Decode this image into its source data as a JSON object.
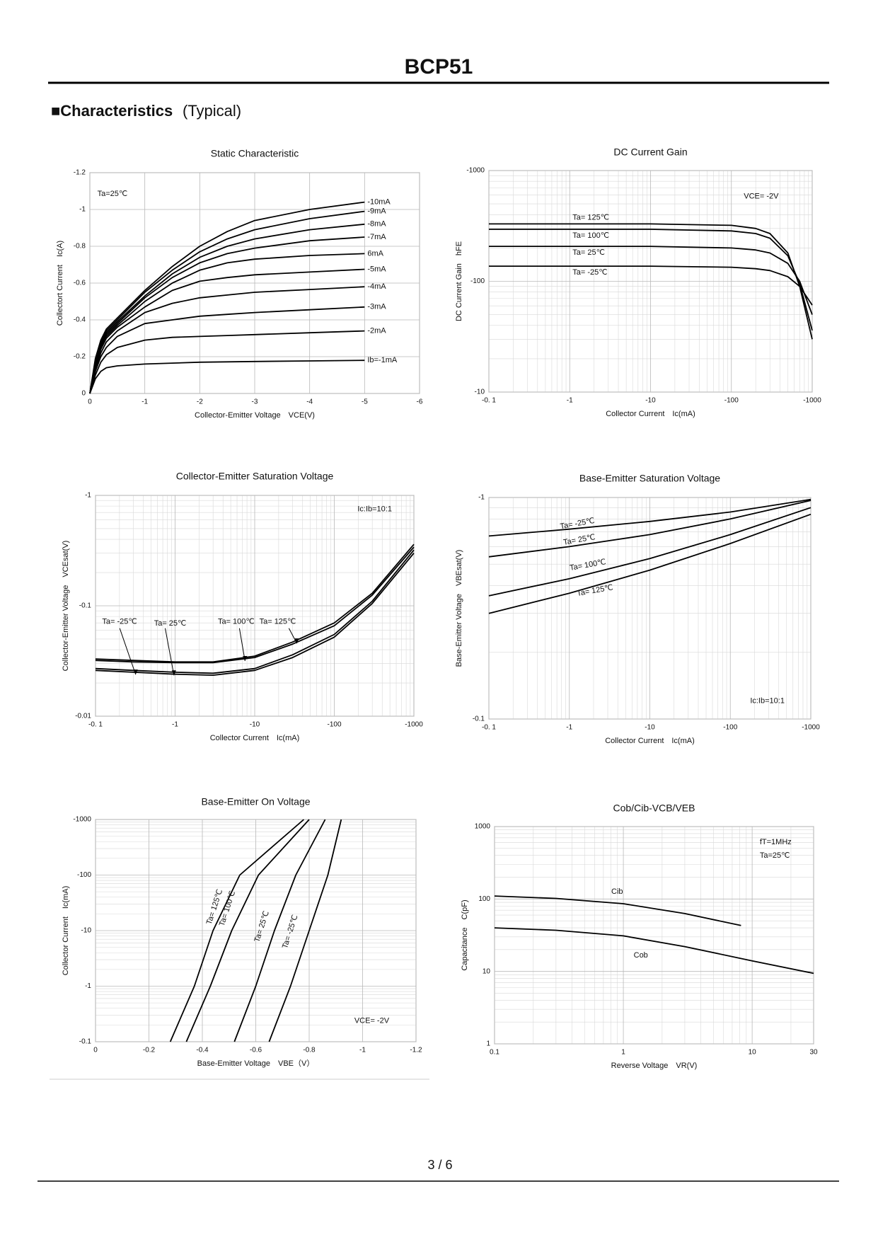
{
  "header": {
    "title": "BCP51"
  },
  "section": {
    "title": "■Characteristics",
    "note": "(Typical)"
  },
  "footer": {
    "page": "3 / 6"
  },
  "chart_data": [
    {
      "type": "line",
      "title": "Static Characteristic",
      "xlabel": "Collector-Emitter Voltage　VCE(V)",
      "ylabel": "Collectort Current　Ic(A)",
      "annotations": [
        "Ta=25℃"
      ],
      "xscale": "linear",
      "yscale": "linear",
      "grid": true,
      "color": "#000000",
      "xlim": [
        0,
        -6
      ],
      "xticks": [
        0,
        -1,
        -2,
        -3,
        -4,
        -5,
        -6
      ],
      "ylim": [
        0,
        -1.2
      ],
      "yticks": [
        0,
        -0.2,
        -0.4,
        -0.6,
        -0.8,
        -1,
        -1.2
      ],
      "x": [
        0,
        -0.1,
        -0.2,
        -0.3,
        -0.5,
        -1,
        -1.5,
        -2,
        -2.5,
        -3,
        -4,
        -5
      ],
      "series": [
        {
          "name": "Ib=-1mA",
          "values": [
            0,
            -0.08,
            -0.12,
            -0.14,
            -0.15,
            -0.16,
            -0.165,
            -0.17,
            -0.172,
            -0.174,
            -0.177,
            -0.18
          ]
        },
        {
          "name": "-2mA",
          "values": [
            0,
            -0.1,
            -0.17,
            -0.21,
            -0.25,
            -0.29,
            -0.305,
            -0.31,
            -0.315,
            -0.32,
            -0.33,
            -0.34
          ]
        },
        {
          "name": "-3mA",
          "values": [
            0,
            -0.12,
            -0.2,
            -0.25,
            -0.31,
            -0.38,
            -0.4,
            -0.42,
            -0.43,
            -0.44,
            -0.455,
            -0.47
          ]
        },
        {
          "name": "-4mA",
          "values": [
            0,
            -0.13,
            -0.22,
            -0.28,
            -0.34,
            -0.44,
            -0.49,
            -0.52,
            -0.535,
            -0.55,
            -0.565,
            -0.58
          ]
        },
        {
          "name": "-5mA",
          "values": [
            0,
            -0.14,
            -0.24,
            -0.3,
            -0.36,
            -0.47,
            -0.56,
            -0.61,
            -0.63,
            -0.645,
            -0.66,
            -0.675
          ]
        },
        {
          "name": "6mA",
          "values": [
            0,
            -0.15,
            -0.25,
            -0.31,
            -0.37,
            -0.5,
            -0.6,
            -0.67,
            -0.71,
            -0.73,
            -0.75,
            -0.76
          ]
        },
        {
          "name": "-7mA",
          "values": [
            0,
            -0.16,
            -0.26,
            -0.32,
            -0.38,
            -0.52,
            -0.63,
            -0.71,
            -0.76,
            -0.79,
            -0.83,
            -0.85
          ]
        },
        {
          "name": "-8mA",
          "values": [
            0,
            -0.17,
            -0.27,
            -0.33,
            -0.39,
            -0.53,
            -0.65,
            -0.74,
            -0.8,
            -0.84,
            -0.89,
            -0.92
          ]
        },
        {
          "name": "-9mA",
          "values": [
            0,
            -0.18,
            -0.28,
            -0.34,
            -0.4,
            -0.55,
            -0.67,
            -0.77,
            -0.84,
            -0.89,
            -0.95,
            -0.99
          ]
        },
        {
          "name": "-10mA",
          "values": [
            0,
            -0.19,
            -0.29,
            -0.35,
            -0.41,
            -0.56,
            -0.69,
            -0.8,
            -0.88,
            -0.94,
            -1.0,
            -1.04
          ]
        }
      ]
    },
    {
      "type": "line",
      "title": "DC Current Gain",
      "xlabel": "Collector Current　Ic(mA)",
      "ylabel": "DC Current Gain　hFE",
      "annotations": [
        "VCE= -2V"
      ],
      "xscale": "log",
      "yscale": "log",
      "grid": true,
      "color": "#000000",
      "xlim": [
        -0.1,
        -1000
      ],
      "xticks": [
        {
          "value": -0.1,
          "label": "-0. 1"
        },
        -1,
        -10,
        -100,
        -1000
      ],
      "ylim": [
        -10,
        -1000
      ],
      "yticks": [
        -10,
        -100,
        -1000
      ],
      "x": [
        -0.1,
        -1,
        -10,
        -100,
        -200,
        -300,
        -500,
        -700,
        -1000
      ],
      "series": [
        {
          "name": "Ta= 125℃",
          "values": [
            -330,
            -330,
            -330,
            -320,
            -300,
            -270,
            -180,
            -90,
            -30
          ]
        },
        {
          "name": "Ta= 100℃",
          "values": [
            -295,
            -295,
            -295,
            -285,
            -270,
            -245,
            -170,
            -95,
            -36
          ]
        },
        {
          "name": "Ta= 25℃",
          "values": [
            -207,
            -207,
            -207,
            -200,
            -192,
            -180,
            -145,
            -100,
            -50
          ]
        },
        {
          "name": "Ta= -25℃",
          "values": [
            -137,
            -137,
            -137,
            -134,
            -130,
            -125,
            -110,
            -90,
            -61
          ]
        }
      ]
    },
    {
      "type": "line",
      "title": "Collector-Emitter Saturation Voltage",
      "xlabel": "Collector Current　Ic(mA)",
      "ylabel": "Collector-Emitter Voltage　VCEsat(V)",
      "annotations": [
        "Ic:Ib=10:1"
      ],
      "xscale": "log",
      "yscale": "log",
      "grid": true,
      "color": "#000000",
      "xlim": [
        -0.1,
        -1000
      ],
      "xticks": [
        {
          "value": -0.1,
          "label": "-0. 1"
        },
        -1,
        -10,
        -100,
        -1000
      ],
      "ylim": [
        -0.01,
        -1
      ],
      "yticks": [
        -0.01,
        -0.1,
        -1
      ],
      "x": [
        -0.1,
        -0.3,
        -1,
        -3,
        -10,
        -30,
        -100,
        -300,
        -1000
      ],
      "series": [
        {
          "name": "Ta= -25℃",
          "values": [
            -0.026,
            -0.025,
            -0.024,
            -0.0235,
            -0.026,
            -0.034,
            -0.052,
            -0.105,
            -0.3
          ]
        },
        {
          "name": "Ta= 25℃",
          "values": [
            -0.027,
            -0.026,
            -0.025,
            -0.0245,
            -0.027,
            -0.036,
            -0.055,
            -0.11,
            -0.32
          ]
        },
        {
          "name": "Ta= 100℃",
          "values": [
            -0.032,
            -0.031,
            -0.0305,
            -0.0305,
            -0.034,
            -0.045,
            -0.066,
            -0.125,
            -0.34
          ]
        },
        {
          "name": "Ta= 125℃",
          "values": [
            -0.033,
            -0.032,
            -0.031,
            -0.031,
            -0.035,
            -0.047,
            -0.07,
            -0.13,
            -0.36
          ]
        }
      ]
    },
    {
      "type": "line",
      "title": "Base-Emitter Saturation Voltage",
      "xlabel": "Collector Current　Ic(mA)",
      "ylabel": "Base-Emitter Voltage　VBEsat(V)",
      "annotations": [
        "Ic:Ib=10:1"
      ],
      "xscale": "log",
      "yscale": "log",
      "grid": true,
      "color": "#000000",
      "xlim": [
        -0.1,
        -1000
      ],
      "xticks": [
        {
          "value": -0.1,
          "label": "-0. 1"
        },
        -1,
        -10,
        -100,
        -1000
      ],
      "ylim": [
        -0.1,
        -1
      ],
      "yticks": [
        -0.1,
        -1
      ],
      "x": [
        -0.1,
        -1,
        -10,
        -100,
        -1000
      ],
      "series": [
        {
          "name": "Ta= -25℃",
          "values": [
            -0.67,
            -0.72,
            -0.78,
            -0.86,
            -0.98
          ]
        },
        {
          "name": "Ta= 25℃",
          "values": [
            -0.54,
            -0.6,
            -0.68,
            -0.8,
            -0.97
          ]
        },
        {
          "name": "Ta= 100℃",
          "values": [
            -0.36,
            -0.43,
            -0.53,
            -0.68,
            -0.9
          ]
        },
        {
          "name": "Ta= 125℃",
          "values": [
            -0.3,
            -0.37,
            -0.47,
            -0.62,
            -0.84
          ]
        }
      ]
    },
    {
      "type": "line",
      "title": "Base-Emitter On Voltage",
      "xlabel": "Base-Emitter Voltage　VBE（V）",
      "ylabel": "Collector Current　Ic(mA)",
      "annotations": [
        "VCE= -2V"
      ],
      "xscale": "linear",
      "yscale": "log",
      "grid": true,
      "color": "#000000",
      "xlim": [
        0,
        -1.2
      ],
      "xticks": [
        0,
        -0.2,
        -0.4,
        -0.6,
        -0.8,
        -1,
        -1.2
      ],
      "ylim": [
        -0.1,
        -1000
      ],
      "yticks": [
        -0.1,
        -1,
        -10,
        -100,
        -1000
      ],
      "series": [
        {
          "name": "Ta= 125℃",
          "x": [
            -0.28,
            -0.37,
            -0.44,
            -0.54,
            -0.78
          ],
          "values": [
            -0.1,
            -1,
            -10,
            -100,
            -1000
          ]
        },
        {
          "name": "Ta= 100℃",
          "x": [
            -0.34,
            -0.43,
            -0.51,
            -0.61,
            -0.8
          ],
          "values": [
            -0.1,
            -1,
            -10,
            -100,
            -1000
          ]
        },
        {
          "name": "Ta= 25℃",
          "x": [
            -0.52,
            -0.6,
            -0.67,
            -0.75,
            -0.86
          ],
          "values": [
            -0.1,
            -1,
            -10,
            -100,
            -1000
          ]
        },
        {
          "name": "Ta= -25℃",
          "x": [
            -0.65,
            -0.73,
            -0.8,
            -0.87,
            -0.92
          ],
          "values": [
            -0.1,
            -1,
            -10,
            -100,
            -1000
          ]
        }
      ]
    },
    {
      "type": "line",
      "title": "Cob/Cib-VCB/VEB",
      "xlabel": "Reverse Voltage　VR(V)",
      "ylabel": "Capacitance　C(pF)",
      "annotations": [
        "fT=1MHz",
        "Ta=25℃"
      ],
      "xscale": "log",
      "yscale": "log",
      "grid": true,
      "color": "#000000",
      "xlim": [
        0.1,
        30
      ],
      "xticks": [
        0.1,
        1,
        10,
        30
      ],
      "ylim": [
        1,
        1000
      ],
      "yticks": [
        1,
        10,
        100,
        1000
      ],
      "series": [
        {
          "name": "Cib",
          "x": [
            0.1,
            0.3,
            1,
            3,
            8.2
          ],
          "values": [
            110,
            102,
            86,
            63,
            43
          ]
        },
        {
          "name": "Cob",
          "x": [
            0.1,
            0.3,
            1,
            3,
            10,
            30
          ],
          "values": [
            40,
            37,
            31,
            22,
            14,
            9.4
          ]
        }
      ]
    }
  ]
}
